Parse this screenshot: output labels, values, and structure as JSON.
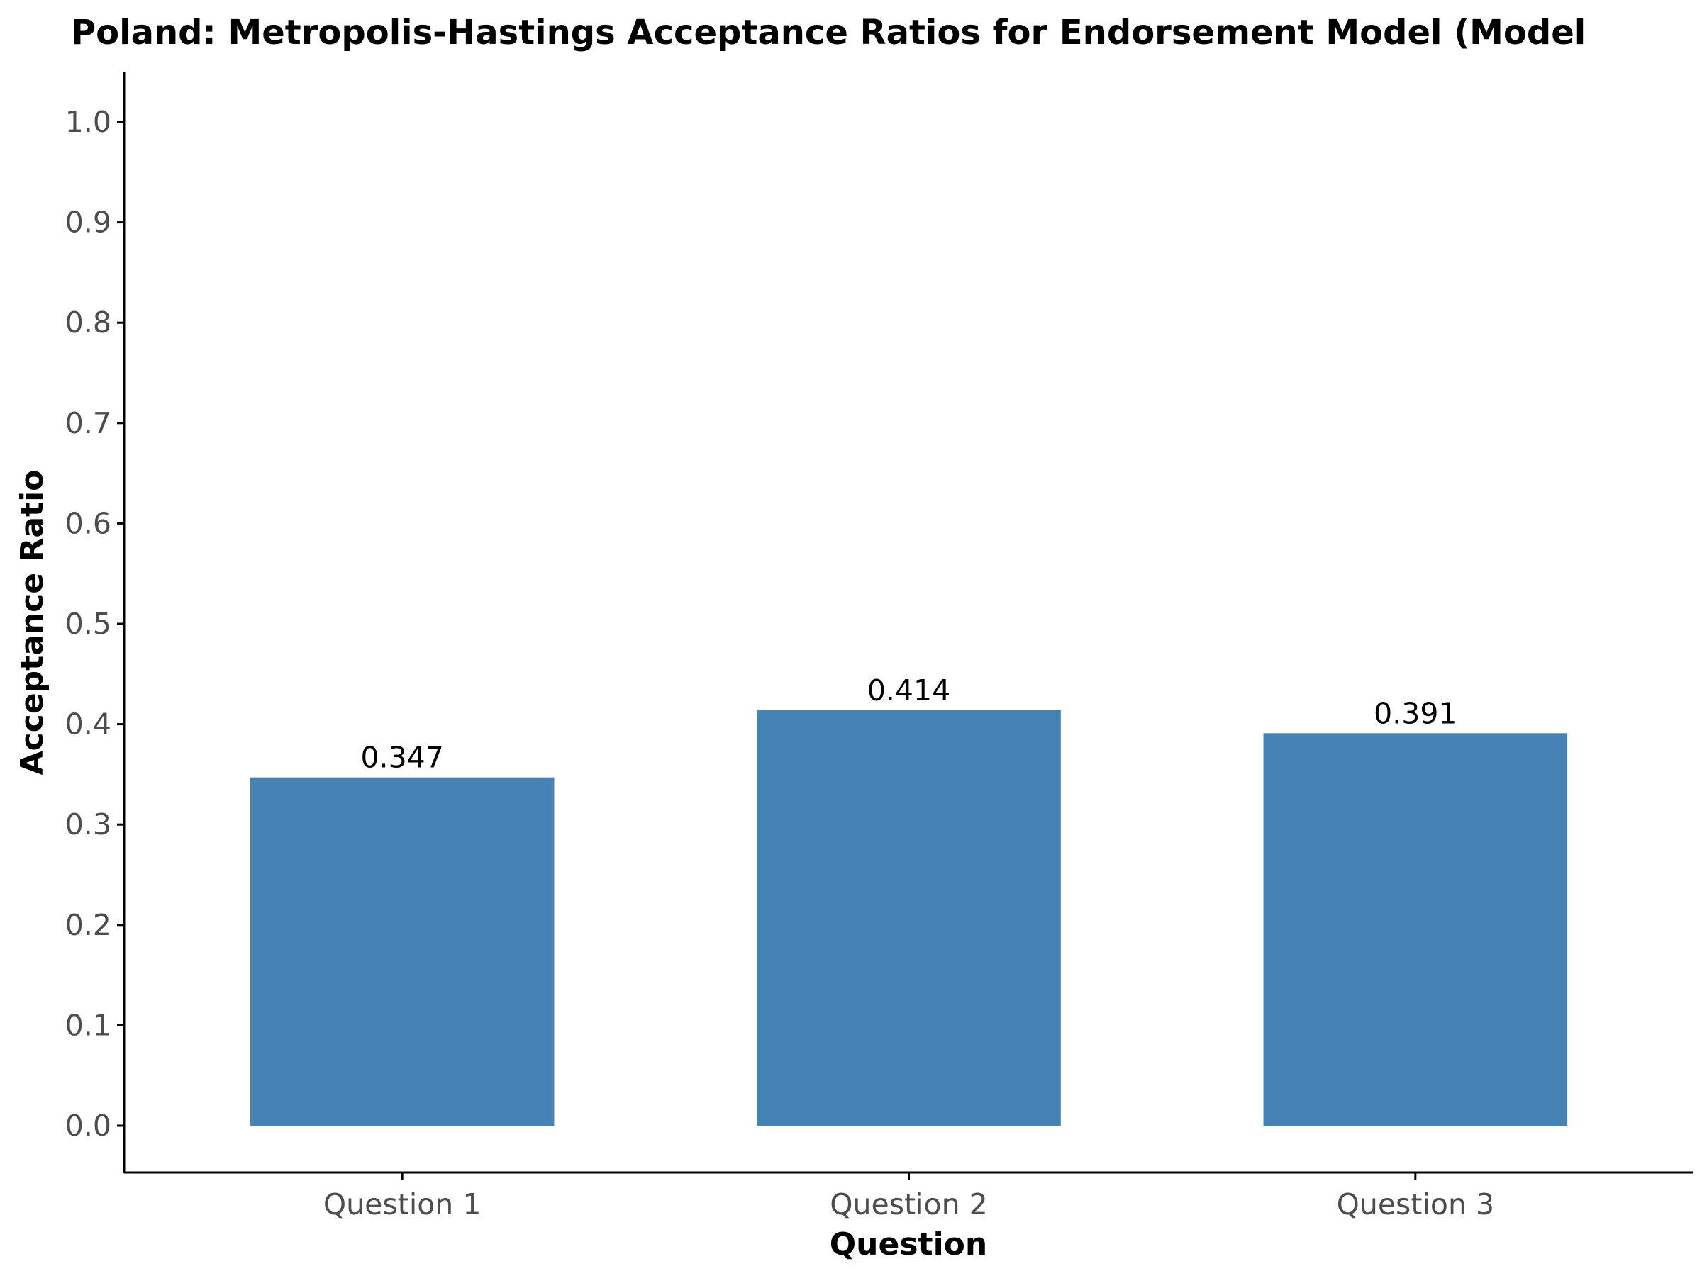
{
  "chart_data": {
    "type": "bar",
    "title": "Poland: Metropolis-Hastings Acceptance Ratios for Endorsement Model (Model",
    "xlabel": "Question",
    "ylabel": "Acceptance Ratio",
    "categories": [
      "Question 1",
      "Question 2",
      "Question 3"
    ],
    "values": [
      0.347,
      0.414,
      0.391
    ],
    "value_labels": [
      "0.347",
      "0.414",
      "0.391"
    ],
    "yticks": [
      "0.0",
      "0.1",
      "0.2",
      "0.3",
      "0.4",
      "0.5",
      "0.6",
      "0.7",
      "0.8",
      "0.9",
      "1.0"
    ],
    "ylim": [
      -0.05,
      1.05
    ],
    "grid": false,
    "legend": "none",
    "bar_color": "#4682B4",
    "axis_color": "#000000",
    "tick_label_color": "#4d4d4d"
  }
}
